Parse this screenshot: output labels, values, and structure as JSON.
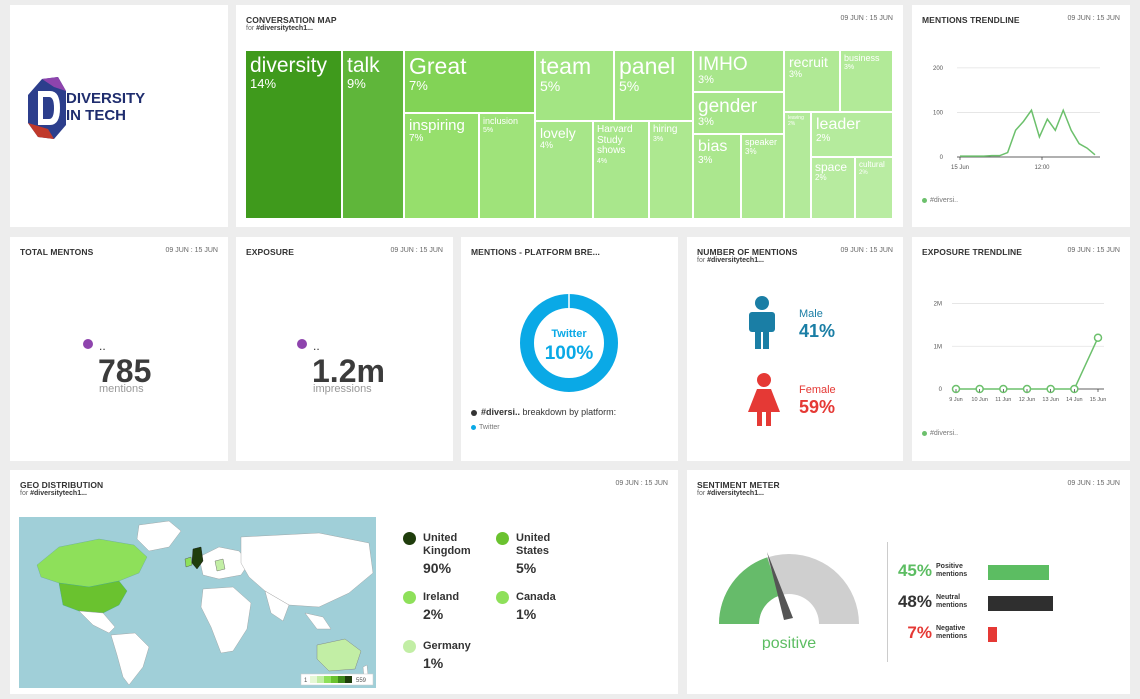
{
  "logo": {
    "line1": "DIVERSITY",
    "line2": "IN TECH"
  },
  "conversation_map": {
    "title": "CONVERSATION MAP",
    "sub_prefix": "for",
    "sub_tag": "#diversitytech1...",
    "date": "09 JUN : 15 JUN",
    "cells": [
      {
        "word": "diversity",
        "pct": "14%"
      },
      {
        "word": "talk",
        "pct": "9%"
      },
      {
        "word": "Great",
        "pct": "7%"
      },
      {
        "word": "inspiring",
        "pct": "7%"
      },
      {
        "word": "inclusion",
        "pct": "5%"
      },
      {
        "word": "team",
        "pct": "5%"
      },
      {
        "word": "panel",
        "pct": "5%"
      },
      {
        "word": "lovely",
        "pct": "4%"
      },
      {
        "word": "Harvard Study shows",
        "pct": "4%"
      },
      {
        "word": "hiring",
        "pct": "3%"
      },
      {
        "word": "IMHO",
        "pct": "3%"
      },
      {
        "word": "gender",
        "pct": "3%"
      },
      {
        "word": "bias",
        "pct": "3%"
      },
      {
        "word": "speaker",
        "pct": "3%"
      },
      {
        "word": "recruit",
        "pct": "3%"
      },
      {
        "word": "business",
        "pct": "3%"
      },
      {
        "word": "leaving",
        "pct": "2%"
      },
      {
        "word": "leader",
        "pct": "2%"
      },
      {
        "word": "space",
        "pct": "2%"
      },
      {
        "word": "cultural",
        "pct": "2%"
      }
    ]
  },
  "mentions_trendline": {
    "title": "MENTIONS TRENDLINE",
    "date": "09 JUN : 15 JUN",
    "legend": "#diversi..",
    "chart_data": {
      "type": "line",
      "yticks": [
        "200",
        "100",
        "0"
      ],
      "xticks": [
        "15 Jun",
        "12:00"
      ],
      "ylim": [
        0,
        220
      ],
      "series": [
        {
          "name": "#diversi..",
          "values": [
            2,
            2,
            2,
            2,
            3,
            3,
            10,
            60,
            80,
            105,
            45,
            85,
            60,
            105,
            60,
            30,
            20,
            5
          ]
        }
      ]
    }
  },
  "total_mentions": {
    "title": "TOTAL MENTONS",
    "date": "09 JUN : 15 JUN",
    "dots": "..",
    "value": "785",
    "unit": "mentions"
  },
  "exposure": {
    "title": "EXPOSURE",
    "date": "09 JUN : 15 JUN",
    "dots": "..",
    "value": "1.2m",
    "unit": "impressions"
  },
  "platform": {
    "title": "MENTIONS - PLATFORM BRE...",
    "donut_label": "Twitter",
    "donut_value": "100%",
    "breakdown_tag": "#diversi..",
    "breakdown_text": "breakdown by platform:",
    "legend": "Twitter",
    "chart_data": {
      "type": "pie",
      "categories": [
        "Twitter"
      ],
      "values": [
        100
      ]
    }
  },
  "number_of_mentions": {
    "title": "NUMBER OF MENTIONS",
    "sub_prefix": "for",
    "sub_tag": "#diversitytech1...",
    "date": "09 JUN : 15 JUN",
    "male_label": "Male",
    "male_pct": "41%",
    "female_label": "Female",
    "female_pct": "59%"
  },
  "exposure_trendline": {
    "title": "EXPOSURE TRENDLINE",
    "date": "09 JUN : 15 JUN",
    "legend": "#diversi..",
    "chart_data": {
      "type": "line",
      "yticks": [
        "2M",
        "1M",
        "0"
      ],
      "x": [
        "9 Jun",
        "10 Jun",
        "11 Jun",
        "12 Jun",
        "13 Jun",
        "14 Jun",
        "15 Jun"
      ],
      "ylim": [
        0,
        2200000
      ],
      "series": [
        {
          "name": "#diversi..",
          "values": [
            0,
            0,
            0,
            0,
            0,
            0,
            1200000
          ]
        }
      ]
    }
  },
  "geo": {
    "title": "GEO DISTRIBUTION",
    "sub_prefix": "for",
    "sub_tag": "#diversitytech1...",
    "date": "09 JUN : 15 JUN",
    "scale_min": "1",
    "scale_max": "559",
    "items": [
      {
        "name": "United Kingdom",
        "pct": "90%",
        "color": "#1f3d0c"
      },
      {
        "name": "United States",
        "pct": "5%",
        "color": "#6ac22f"
      },
      {
        "name": "Ireland",
        "pct": "2%",
        "color": "#8ee05a"
      },
      {
        "name": "Canada",
        "pct": "1%",
        "color": "#8ee05a"
      },
      {
        "name": "Germany",
        "pct": "1%",
        "color": "#c2eea5"
      }
    ]
  },
  "sentiment": {
    "title": "SENTIMENT METER",
    "sub_prefix": "for",
    "sub_tag": "#diversitytech1...",
    "date": "09 JUN : 15 JUN",
    "gauge_label": "positive",
    "rows": [
      {
        "pct": "45%",
        "label": "Positive mentions",
        "value": 45,
        "color": "#5cbd62"
      },
      {
        "pct": "48%",
        "label": "Neutral mentions",
        "value": 48,
        "color": "#2f2f2f"
      },
      {
        "pct": "7%",
        "label": "Negative mentions",
        "value": 7,
        "color": "#e53935"
      }
    ]
  }
}
